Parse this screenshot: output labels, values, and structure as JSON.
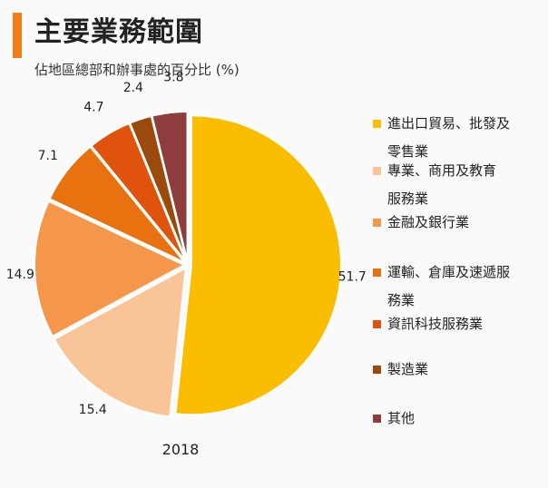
{
  "header": {
    "title": "主要業務範圍",
    "subtitle": "佔地區總部和辦事處的百分比 (%)"
  },
  "colors": {
    "accent": "#f07f1b"
  },
  "chart_data": {
    "type": "pie",
    "title": "主要業務範圍",
    "subtitle": "佔地區總部和辦事處的百分比 (%)",
    "xlabel": "2018",
    "categories": [
      "進出口貿易、批發及零售業",
      "專業、商用及教育服務業",
      "金融及銀行業",
      "運輸、倉庫及速遞服務業",
      "資訊科技服務業",
      "製造業",
      "其他"
    ],
    "values": [
      51.7,
      15.4,
      14.9,
      7.1,
      4.7,
      2.4,
      3.8
    ],
    "value_labels": [
      "51.7",
      "15.4",
      "14.9",
      "7.1",
      "4.7",
      "2.4",
      "3.8"
    ],
    "colors": [
      "#fbbd00",
      "#f8c498",
      "#f4974a",
      "#e8720f",
      "#e0530d",
      "#9c4a0c",
      "#8e3c3c"
    ],
    "legend_position": "right"
  },
  "legend": {
    "items": [
      {
        "line1": "進出口貿易、批發及",
        "line2": "零售業"
      },
      {
        "line1": "專業、商用及教育",
        "line2": "服務業"
      },
      {
        "line1": "金融及銀行業",
        "line2": ""
      },
      {
        "line1": "運輸、倉庫及速遞服",
        "line2": "務業"
      },
      {
        "line1": "資訊科技服務業",
        "line2": ""
      },
      {
        "line1": "製造業",
        "line2": ""
      },
      {
        "line1": "其他",
        "line2": ""
      }
    ]
  }
}
